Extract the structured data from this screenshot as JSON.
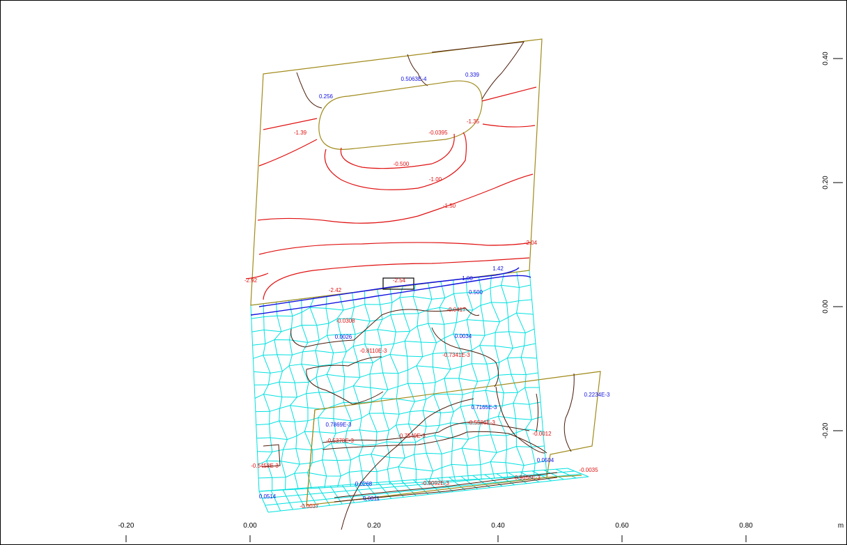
{
  "x_axis": {
    "ticks": [
      "-0.20",
      "0.00",
      "0.20",
      "0.40",
      "0.60",
      "0.80"
    ],
    "unit": "m"
  },
  "y_axis": {
    "ticks": [
      "0.40",
      "0.20",
      "0.00",
      "-0.20"
    ]
  },
  "contour_labels": {
    "upper_blue": [
      "0.5063E-4",
      "0.339",
      "0.256"
    ],
    "upper_red": [
      "-1.39",
      "-0.0395",
      "-1.35",
      "-0.500",
      "-1.00",
      "-1.50",
      "-2.04",
      "-2.92",
      "-2.42",
      "-2.54"
    ],
    "mesh_blue": [
      "1.42",
      "1.00",
      "0.500",
      "0.0026",
      "0.0034",
      "0.7165E-3",
      "0.7869E-3",
      "0.0504",
      "0.0268",
      "0.0514",
      "0.0011",
      "0.2234E-3"
    ],
    "mesh_red": [
      "-0.0417",
      "-0.0308",
      "-0.8110E-3",
      "-0.7341E-3",
      "-0.5586E-3",
      "-0.5378E-3",
      "-0.7549E-3",
      "-0.0012",
      "-0.5458E-3",
      "-0.9092E-3",
      "-0.9656E-3",
      "-0.0035",
      "-0.0037"
    ]
  },
  "colors": {
    "outline": "#a08a1a",
    "contour_neg": "#e01010",
    "contour_pos": "#1010e0",
    "contour_dark": "#4a1a0a",
    "mesh": "#00e0e0",
    "label_pos": "#1010e0",
    "label_neg": "#e01010"
  }
}
